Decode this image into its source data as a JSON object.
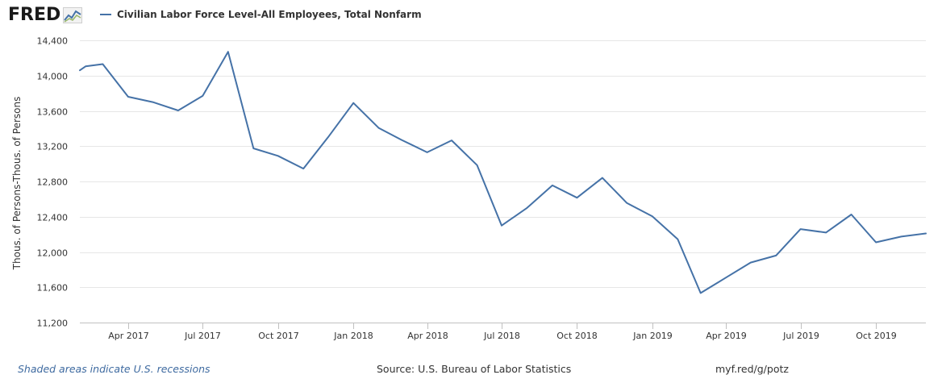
{
  "header": {
    "logo_text": "FRED",
    "logo_icon": "fred-sparkline-icon",
    "legend_label": "Civilian Labor Force Level-All Employees, Total Nonfarm"
  },
  "footer": {
    "recession_note": "Shaded areas indicate U.S. recessions",
    "source": "Source: U.S. Bureau of Labor Statistics",
    "short_url": "myf.red/g/potz"
  },
  "colors": {
    "series": "#4572a7",
    "grid": "#e6e6e6",
    "axis_text": "#333333",
    "recession_note": "#3e6aa0"
  },
  "chart_data": {
    "type": "line",
    "title": "Civilian Labor Force Level-All Employees, Total Nonfarm",
    "xlabel": "",
    "ylabel": "Thous. of Persons-Thous. of Persons",
    "ylim": [
      11200,
      14400
    ],
    "yticks": [
      11200,
      11600,
      12000,
      12400,
      12800,
      13200,
      13600,
      14000,
      14400
    ],
    "ytick_labels": [
      "11,200",
      "11,600",
      "12,000",
      "12,400",
      "12,800",
      "13,200",
      "13,600",
      "14,000",
      "14,400"
    ],
    "xlim": [
      "2017-02-01",
      "2019-12-01"
    ],
    "xticks": [
      "2017-04-01",
      "2017-07-01",
      "2017-10-01",
      "2018-01-01",
      "2018-04-01",
      "2018-07-01",
      "2018-10-01",
      "2019-01-01",
      "2019-04-01",
      "2019-07-01",
      "2019-10-01"
    ],
    "xtick_labels": [
      "Apr 2017",
      "Jul 2017",
      "Oct 2017",
      "Jan 2018",
      "Apr 2018",
      "Jul 2018",
      "Oct 2018",
      "Jan 2019",
      "Apr 2019",
      "Jul 2019",
      "Oct 2019"
    ],
    "grid": true,
    "legend": "top-left",
    "series": [
      {
        "name": "Civilian Labor Force Level-All Employees, Total Nonfarm",
        "x": [
          "2017-02-01",
          "2017-02-08",
          "2017-03-01",
          "2017-04-01",
          "2017-05-01",
          "2017-06-01",
          "2017-07-01",
          "2017-08-01",
          "2017-09-01",
          "2017-10-01",
          "2017-11-01",
          "2017-12-01",
          "2018-01-01",
          "2018-02-01",
          "2018-03-01",
          "2018-04-01",
          "2018-05-01",
          "2018-06-01",
          "2018-07-01",
          "2018-08-01",
          "2018-09-01",
          "2018-10-01",
          "2018-11-01",
          "2018-12-01",
          "2019-01-01",
          "2019-02-01",
          "2019-03-01",
          "2019-04-01",
          "2019-05-01",
          "2019-06-01",
          "2019-07-01",
          "2019-08-01",
          "2019-09-01",
          "2019-10-01",
          "2019-11-01",
          "2019-12-01"
        ],
        "values": [
          14060,
          14105,
          14130,
          13760,
          13700,
          13605,
          13770,
          14270,
          13175,
          13090,
          12945,
          13300,
          13690,
          13405,
          13270,
          13130,
          13265,
          12985,
          12300,
          12500,
          12755,
          12615,
          12840,
          12555,
          12405,
          12145,
          11535,
          11710,
          11880,
          11960,
          12260,
          12220,
          12425,
          12110,
          12175,
          12210
        ]
      }
    ]
  }
}
